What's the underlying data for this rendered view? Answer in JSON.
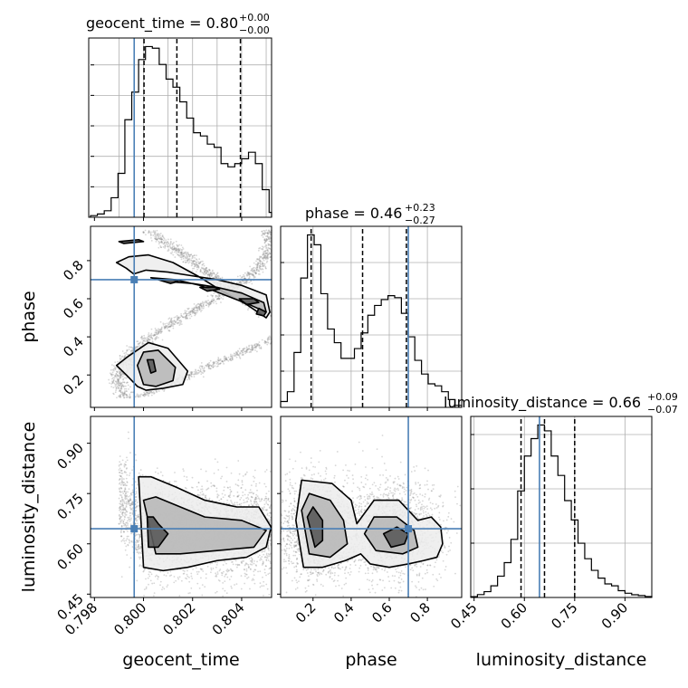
{
  "chart_data": {
    "type": "corner",
    "colors": {
      "truth": "#4a7fb5",
      "hist": "#000000",
      "points": "#8c8c8c",
      "grid": "#b0b0b0"
    },
    "parameters": [
      "geocent_time",
      "phase",
      "luminosity_distance"
    ],
    "truths": {
      "geocent_time": 0.79962,
      "phase": 0.7,
      "luminosity_distance": 0.645
    },
    "titles": [
      {
        "param": "geocent_time",
        "prefix": "geocent_time = ",
        "value": "0.80",
        "plus": "+0.00",
        "minus": "−0.00"
      },
      {
        "param": "phase",
        "prefix": "phase = ",
        "value": "0.46",
        "plus": "+0.23",
        "minus": "−0.27"
      },
      {
        "param": "luminosity_distance",
        "prefix": "luminosity_distance = ",
        "value": "0.66",
        "plus": "+0.09",
        "minus": "−0.07"
      }
    ],
    "axis_labels": {
      "geocent_time": "geocent_time",
      "phase": "phase",
      "luminosity_distance": "luminosity_distance"
    },
    "ranges": {
      "geocent_time": [
        0.79784,
        0.80522
      ],
      "phase": [
        0.03,
        0.98
      ],
      "luminosity_distance": [
        0.44,
        0.98
      ]
    },
    "ticks": {
      "geocent_time": [
        "0.798",
        "0.800",
        "0.802",
        "0.804"
      ],
      "phase_x": [
        "0.2",
        "0.4",
        "0.6",
        "0.8"
      ],
      "phase_y": [
        "0.2",
        "0.4",
        "0.6",
        "0.8"
      ],
      "luminosity_distance": [
        "0.45",
        "0.60",
        "0.75",
        "0.90"
      ]
    },
    "quantile_lines": {
      "geocent_time": [
        0.80002,
        0.80136,
        0.80395
      ],
      "phase": [
        0.19,
        0.46,
        0.69
      ],
      "luminosity_distance": [
        0.59,
        0.66,
        0.75
      ]
    },
    "hist_geocent_time": {
      "edges": [
        0.79784,
        0.79812,
        0.7984,
        0.79868,
        0.79896,
        0.79924,
        0.79952,
        0.7998,
        0.80008,
        0.80036,
        0.80064,
        0.80092,
        0.8012,
        0.80148,
        0.80176,
        0.80204,
        0.80232,
        0.8026,
        0.80288,
        0.80316,
        0.80344,
        0.80372,
        0.804,
        0.80428,
        0.80456,
        0.80484,
        0.80512,
        0.80522
      ],
      "counts": [
        1,
        2,
        4,
        12,
        27,
        60,
        77,
        97,
        105,
        104,
        94,
        85,
        80,
        71,
        61,
        52,
        50,
        45,
        43,
        33,
        31,
        33,
        36,
        40,
        33,
        17,
        3
      ]
    },
    "hist_phase": {
      "edges": [
        0.03,
        0.0652,
        0.1004,
        0.1356,
        0.1708,
        0.206,
        0.2412,
        0.2764,
        0.3116,
        0.3468,
        0.382,
        0.4172,
        0.4524,
        0.4876,
        0.5228,
        0.558,
        0.5932,
        0.6284,
        0.6636,
        0.6988,
        0.734,
        0.7692,
        0.8044,
        0.8396,
        0.8748,
        0.91,
        0.9452,
        0.98
      ],
      "counts": [
        3,
        8,
        28,
        66,
        88,
        83,
        58,
        40,
        33,
        25,
        25,
        30,
        38,
        47,
        52,
        55,
        57,
        56,
        48,
        36,
        24,
        17,
        12,
        11,
        8,
        4,
        1
      ]
    },
    "hist_luminosity_distance": {
      "edges": [
        0.44,
        0.46,
        0.48,
        0.5,
        0.52,
        0.54,
        0.56,
        0.58,
        0.6,
        0.62,
        0.64,
        0.66,
        0.68,
        0.7,
        0.72,
        0.74,
        0.76,
        0.78,
        0.8,
        0.82,
        0.84,
        0.86,
        0.88,
        0.9,
        0.92,
        0.94,
        0.96,
        0.98
      ],
      "counts": [
        0.4,
        1.5,
        3,
        6,
        11,
        18,
        30,
        55,
        73,
        82,
        89,
        86,
        73,
        63,
        50,
        40,
        28,
        20,
        14,
        10,
        7,
        6,
        3.5,
        2.2,
        1.4,
        1,
        0.5
      ]
    },
    "contours_phase_vs_geocent_time": [
      {
        "level": 1,
        "x": [
          0.7989,
          0.7994,
          0.8002,
          0.8012,
          0.8022,
          0.8032,
          0.8042,
          0.805,
          0.80515,
          0.805,
          0.804,
          0.803,
          0.802,
          0.801,
          0.8001,
          0.7996,
          0.7993,
          0.7989
        ],
        "y": [
          0.79,
          0.82,
          0.83,
          0.79,
          0.72,
          0.64,
          0.57,
          0.5,
          0.53,
          0.62,
          0.67,
          0.7,
          0.72,
          0.74,
          0.75,
          0.73,
          0.76,
          0.79
        ]
      },
      {
        "level": 1,
        "x": [
          0.7989,
          0.7994,
          0.8002,
          0.801,
          0.8018,
          0.8016,
          0.8008,
          0.8001,
          0.79975,
          0.7993,
          0.7989
        ],
        "y": [
          0.25,
          0.3,
          0.37,
          0.34,
          0.22,
          0.15,
          0.13,
          0.12,
          0.14,
          0.2,
          0.25
        ]
      },
      {
        "level": 2,
        "x": [
          0.8003,
          0.8013,
          0.8023,
          0.8033,
          0.8043,
          0.805,
          0.8049,
          0.804,
          0.803,
          0.802,
          0.801,
          0.8003
        ],
        "y": [
          0.71,
          0.7,
          0.67,
          0.62,
          0.57,
          0.53,
          0.58,
          0.63,
          0.66,
          0.68,
          0.69,
          0.71
        ]
      },
      {
        "level": 2,
        "x": [
          0.79975,
          0.8,
          0.8006,
          0.8013,
          0.8012,
          0.8005,
          0.8,
          0.79975
        ],
        "y": [
          0.25,
          0.32,
          0.33,
          0.24,
          0.17,
          0.14,
          0.15,
          0.25
        ]
      },
      {
        "level": 3,
        "x": [
          0.8006,
          0.8012,
          0.8014,
          0.8011,
          0.8006
        ],
        "y": [
          0.7,
          0.7,
          0.69,
          0.68,
          0.7
        ]
      },
      {
        "level": 3,
        "x": [
          0.8023,
          0.8029,
          0.8031,
          0.8026,
          0.8023
        ],
        "y": [
          0.66,
          0.66,
          0.65,
          0.64,
          0.66
        ]
      },
      {
        "level": 3,
        "x": [
          0.8039,
          0.8045,
          0.8047,
          0.8042,
          0.8039
        ],
        "y": [
          0.6,
          0.6,
          0.58,
          0.57,
          0.6
        ]
      },
      {
        "level": 3,
        "x": [
          0.8047,
          0.805,
          0.8049,
          0.8046,
          0.8047
        ],
        "y": [
          0.55,
          0.53,
          0.51,
          0.52,
          0.55
        ]
      },
      {
        "level": 3,
        "x": [
          0.80015,
          0.8004,
          0.8005,
          0.8003,
          0.80015
        ],
        "y": [
          0.28,
          0.28,
          0.22,
          0.21,
          0.28
        ]
      },
      {
        "level": 3,
        "x": [
          0.799,
          0.7998,
          0.8,
          0.7992,
          0.799
        ],
        "y": [
          0.9,
          0.91,
          0.9,
          0.89,
          0.9
        ]
      }
    ],
    "contours_luminosity_distance_vs_geocent_time": [
      {
        "level": 1,
        "x": [
          0.7998,
          0.8003,
          0.8013,
          0.8025,
          0.8038,
          0.8047,
          0.8052,
          0.805,
          0.8042,
          0.803,
          0.8018,
          0.8008,
          0.8,
          0.7998
        ],
        "y": [
          0.8,
          0.8,
          0.77,
          0.73,
          0.71,
          0.71,
          0.65,
          0.59,
          0.56,
          0.55,
          0.53,
          0.52,
          0.53,
          0.8
        ]
      },
      {
        "level": 2,
        "x": [
          0.8,
          0.8005,
          0.8015,
          0.8025,
          0.804,
          0.805,
          0.8045,
          0.803,
          0.8015,
          0.8005,
          0.8
        ],
        "y": [
          0.73,
          0.74,
          0.71,
          0.68,
          0.67,
          0.64,
          0.59,
          0.58,
          0.57,
          0.57,
          0.73
        ]
      },
      {
        "level": 3,
        "x": [
          0.80015,
          0.8004,
          0.8006,
          0.801,
          0.8006,
          0.8002,
          0.80015
        ],
        "y": [
          0.68,
          0.68,
          0.66,
          0.63,
          0.59,
          0.59,
          0.68
        ]
      }
    ],
    "contours_luminosity_distance_vs_phase": [
      {
        "level": 1,
        "x": [
          0.11,
          0.14,
          0.3,
          0.4,
          0.43,
          0.52,
          0.65,
          0.75,
          0.82,
          0.87,
          0.88,
          0.85,
          0.78,
          0.7,
          0.6,
          0.5,
          0.45,
          0.37,
          0.25,
          0.15,
          0.11
        ],
        "y": [
          0.67,
          0.79,
          0.78,
          0.73,
          0.66,
          0.73,
          0.73,
          0.67,
          0.68,
          0.65,
          0.6,
          0.56,
          0.55,
          0.54,
          0.53,
          0.54,
          0.57,
          0.55,
          0.53,
          0.53,
          0.67
        ]
      },
      {
        "level": 2,
        "x": [
          0.14,
          0.18,
          0.29,
          0.36,
          0.38,
          0.29,
          0.18,
          0.14
        ],
        "y": [
          0.7,
          0.75,
          0.73,
          0.67,
          0.6,
          0.56,
          0.57,
          0.7
        ]
      },
      {
        "level": 2,
        "x": [
          0.47,
          0.52,
          0.64,
          0.73,
          0.75,
          0.67,
          0.53,
          0.47
        ],
        "y": [
          0.63,
          0.68,
          0.68,
          0.64,
          0.59,
          0.57,
          0.58,
          0.63
        ]
      },
      {
        "level": 3,
        "x": [
          0.17,
          0.2,
          0.25,
          0.25,
          0.21,
          0.17
        ],
        "y": [
          0.68,
          0.71,
          0.67,
          0.61,
          0.59,
          0.68
        ]
      },
      {
        "level": 3,
        "x": [
          0.57,
          0.64,
          0.7,
          0.68,
          0.61,
          0.57
        ],
        "y": [
          0.63,
          0.65,
          0.63,
          0.6,
          0.59,
          0.63
        ]
      }
    ]
  }
}
